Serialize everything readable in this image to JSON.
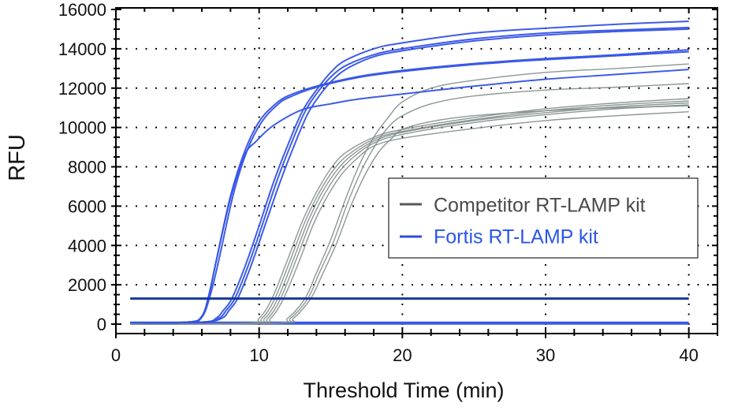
{
  "chart_data": {
    "type": "line",
    "title": "",
    "xlabel": "Threshold Time (min)",
    "ylabel": "RFU",
    "xlim": [
      0,
      42
    ],
    "ylim": [
      -480,
      16080
    ],
    "xticks": [
      0,
      10,
      20,
      30,
      40
    ],
    "yticks": [
      0,
      2000,
      4000,
      6000,
      8000,
      10000,
      12000,
      14000,
      16000
    ],
    "grid": true,
    "legend_position": "center-right",
    "threshold": {
      "value": 1300,
      "x_range": [
        1,
        40
      ],
      "color": "#16389a"
    },
    "baseline": {
      "value": 50,
      "x_range": [
        1,
        40
      ],
      "color": "#3a5ae6"
    },
    "series": [
      {
        "name": "Competitor RT-LAMP kit",
        "color": "#7f8c8a",
        "legend_color": "#555a59",
        "text_color": "#4a4a4a",
        "curves": [
          [
            [
              1,
              0
            ],
            [
              9,
              50
            ],
            [
              10,
              300
            ],
            [
              10.9,
              1300
            ],
            [
              12,
              3300
            ],
            [
              13,
              5200
            ],
            [
              14,
              6700
            ],
            [
              15,
              7900
            ],
            [
              16,
              8700
            ],
            [
              18,
              9500
            ],
            [
              20,
              9900
            ],
            [
              25,
              10500
            ],
            [
              30,
              10950
            ],
            [
              35,
              11250
            ],
            [
              40,
              11470
            ]
          ],
          [
            [
              1,
              0
            ],
            [
              9.2,
              50
            ],
            [
              10.2,
              300
            ],
            [
              11.1,
              1300
            ],
            [
              12.2,
              3300
            ],
            [
              13.2,
              5200
            ],
            [
              14.2,
              6700
            ],
            [
              15.2,
              7850
            ],
            [
              16.2,
              8600
            ],
            [
              18,
              9400
            ],
            [
              20,
              9800
            ],
            [
              25,
              10400
            ],
            [
              30,
              10850
            ],
            [
              35,
              11150
            ],
            [
              40,
              11350
            ]
          ],
          [
            [
              1,
              0
            ],
            [
              9.4,
              50
            ],
            [
              10.4,
              300
            ],
            [
              11.3,
              1300
            ],
            [
              12.4,
              3300
            ],
            [
              13.4,
              5200
            ],
            [
              14.4,
              6700
            ],
            [
              15.4,
              7800
            ],
            [
              16.4,
              8550
            ],
            [
              18,
              9300
            ],
            [
              20,
              9750
            ],
            [
              25,
              10350
            ],
            [
              30,
              10750
            ],
            [
              35,
              11050
            ],
            [
              40,
              11250
            ]
          ],
          [
            [
              1,
              0
            ],
            [
              9.6,
              50
            ],
            [
              10.6,
              300
            ],
            [
              11.5,
              1300
            ],
            [
              12.6,
              3300
            ],
            [
              13.6,
              5200
            ],
            [
              14.6,
              6650
            ],
            [
              15.6,
              7750
            ],
            [
              16.6,
              8500
            ],
            [
              18,
              9200
            ],
            [
              20,
              9650
            ],
            [
              25,
              10250
            ],
            [
              30,
              10650
            ],
            [
              35,
              10950
            ],
            [
              40,
              11150
            ]
          ],
          [
            [
              1,
              0
            ],
            [
              9.8,
              50
            ],
            [
              10.8,
              300
            ],
            [
              11.7,
              1300
            ],
            [
              12.8,
              3200
            ],
            [
              13.8,
              5100
            ],
            [
              14.8,
              6550
            ],
            [
              15.8,
              7650
            ],
            [
              16.8,
              8400
            ],
            [
              18,
              9050
            ],
            [
              20,
              9450
            ],
            [
              25,
              9950
            ],
            [
              30,
              10350
            ],
            [
              35,
              10600
            ],
            [
              40,
              10800
            ]
          ],
          [
            [
              1,
              0
            ],
            [
              11,
              50
            ],
            [
              12,
              300
            ],
            [
              13.2,
              1300
            ],
            [
              14,
              2600
            ],
            [
              15,
              4300
            ],
            [
              16,
              6300
            ],
            [
              17,
              8100
            ],
            [
              18,
              9500
            ],
            [
              19,
              10500
            ],
            [
              20,
              11300
            ],
            [
              22,
              12000
            ],
            [
              25,
              12400
            ],
            [
              30,
              12800
            ],
            [
              35,
              13000
            ],
            [
              40,
              13230
            ]
          ],
          [
            [
              1,
              0
            ],
            [
              11.2,
              50
            ],
            [
              12.2,
              300
            ],
            [
              13.4,
              1300
            ],
            [
              14.2,
              2600
            ],
            [
              15.2,
              4200
            ],
            [
              16.2,
              6200
            ],
            [
              17.2,
              7900
            ],
            [
              18.2,
              9200
            ],
            [
              19,
              10000
            ],
            [
              20,
              10600
            ],
            [
              22,
              11200
            ],
            [
              25,
              11600
            ],
            [
              30,
              11900
            ],
            [
              35,
              12050
            ],
            [
              40,
              12230
            ]
          ],
          [
            [
              1,
              0
            ],
            [
              11.4,
              50
            ],
            [
              12.4,
              300
            ],
            [
              13.6,
              1300
            ],
            [
              14.4,
              2500
            ],
            [
              15.4,
              4100
            ],
            [
              16.4,
              6000
            ],
            [
              17.4,
              7600
            ],
            [
              18.4,
              8800
            ],
            [
              19.2,
              9400
            ],
            [
              20,
              9900
            ],
            [
              22,
              10300
            ],
            [
              25,
              10600
            ],
            [
              30,
              10850
            ],
            [
              35,
              11000
            ],
            [
              40,
              11100
            ]
          ]
        ]
      },
      {
        "name": "Fortis RT-LAMP kit",
        "color": "#3453e6",
        "legend_color": "#2b4ee6",
        "text_color": "#2a56e8",
        "curves": [
          [
            [
              1,
              80
            ],
            [
              5,
              100
            ],
            [
              6,
              400
            ],
            [
              6.5,
              1500
            ],
            [
              7,
              3200
            ],
            [
              8,
              6500
            ],
            [
              9,
              8800
            ],
            [
              10,
              10300
            ],
            [
              11,
              11100
            ],
            [
              12,
              11600
            ],
            [
              14,
              12100
            ],
            [
              17,
              12600
            ],
            [
              20,
              12900
            ],
            [
              25,
              13250
            ],
            [
              30,
              13500
            ],
            [
              35,
              13700
            ],
            [
              40,
              13950
            ]
          ],
          [
            [
              1,
              80
            ],
            [
              5,
              100
            ],
            [
              6,
              350
            ],
            [
              6.6,
              1500
            ],
            [
              7.2,
              3300
            ],
            [
              8.2,
              6600
            ],
            [
              9.2,
              8900
            ],
            [
              10.2,
              10300
            ],
            [
              11.2,
              11100
            ],
            [
              12,
              11500
            ],
            [
              14,
              12050
            ],
            [
              17,
              12550
            ],
            [
              20,
              12850
            ],
            [
              25,
              13200
            ],
            [
              30,
              13450
            ],
            [
              35,
              13650
            ],
            [
              40,
              13850
            ]
          ],
          [
            [
              1,
              80
            ],
            [
              5,
              100
            ],
            [
              6,
              400
            ],
            [
              6.5,
              1500
            ],
            [
              7,
              3200
            ],
            [
              8,
              6400
            ],
            [
              9,
              8600
            ],
            [
              9.8,
              9300
            ],
            [
              11,
              10100
            ],
            [
              13,
              10900
            ],
            [
              15,
              11200
            ],
            [
              17,
              11450
            ],
            [
              20,
              11700
            ],
            [
              25,
              12100
            ],
            [
              30,
              12450
            ],
            [
              35,
              12700
            ],
            [
              40,
              12950
            ]
          ],
          [
            [
              1,
              80
            ],
            [
              6,
              100
            ],
            [
              7,
              300
            ],
            [
              7.5,
              700
            ],
            [
              8.1,
              1300
            ],
            [
              9,
              2900
            ],
            [
              10,
              5000
            ],
            [
              11,
              7200
            ],
            [
              12,
              9100
            ],
            [
              13,
              10800
            ],
            [
              14,
              11900
            ],
            [
              15,
              12800
            ],
            [
              16,
              13400
            ],
            [
              18,
              14000
            ],
            [
              20,
              14300
            ],
            [
              25,
              14800
            ],
            [
              30,
              15050
            ],
            [
              35,
              15250
            ],
            [
              40,
              15400
            ]
          ],
          [
            [
              1,
              80
            ],
            [
              6,
              100
            ],
            [
              7.2,
              300
            ],
            [
              7.7,
              700
            ],
            [
              8.3,
              1300
            ],
            [
              9.2,
              2900
            ],
            [
              10.2,
              5000
            ],
            [
              11.2,
              7200
            ],
            [
              12.2,
              9100
            ],
            [
              13.2,
              10800
            ],
            [
              14.2,
              11900
            ],
            [
              15.2,
              12700
            ],
            [
              16.2,
              13200
            ],
            [
              18,
              13700
            ],
            [
              20,
              14000
            ],
            [
              25,
              14500
            ],
            [
              30,
              14800
            ],
            [
              35,
              14950
            ],
            [
              40,
              15080
            ]
          ],
          [
            [
              1,
              80
            ],
            [
              6,
              100
            ],
            [
              7.4,
              300
            ],
            [
              7.9,
              700
            ],
            [
              8.5,
              1300
            ],
            [
              9.4,
              2900
            ],
            [
              10.4,
              5000
            ],
            [
              11.4,
              7100
            ],
            [
              12.4,
              9000
            ],
            [
              13.4,
              10700
            ],
            [
              14.4,
              11800
            ],
            [
              15.4,
              12600
            ],
            [
              16.4,
              13100
            ],
            [
              18,
              13600
            ],
            [
              20,
              13900
            ],
            [
              25,
              14400
            ],
            [
              30,
              14700
            ],
            [
              35,
              14880
            ],
            [
              40,
              15000
            ]
          ]
        ]
      }
    ]
  }
}
